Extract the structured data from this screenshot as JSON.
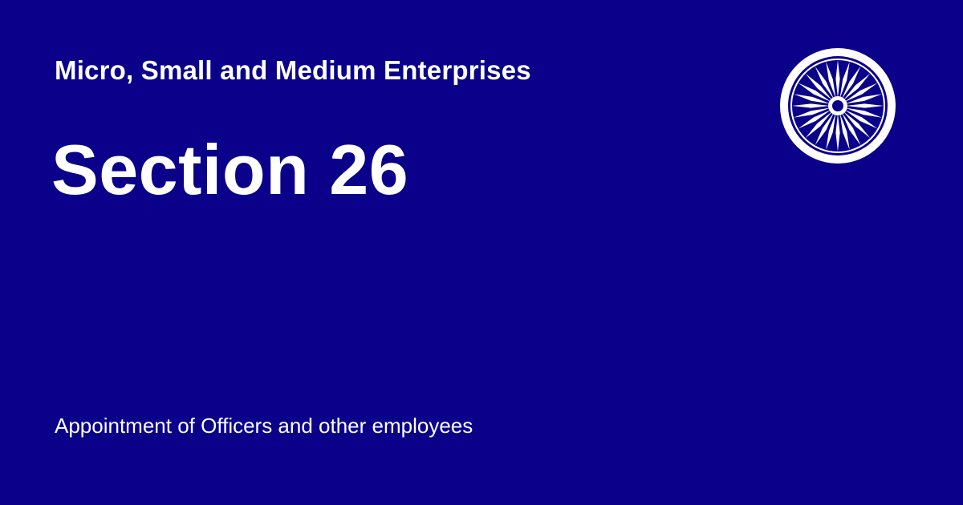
{
  "card": {
    "act_title": "Micro, Small and Medium Enterprises",
    "section_title": "Section 26",
    "section_description": "Appointment of Officers and other employees",
    "emblem_icon": "ashoka-chakra-icon"
  },
  "colors": {
    "background": "#0a008a",
    "text": "#ffffff",
    "emblem_ring": "#ffffff",
    "emblem_fill": "#0a008a"
  }
}
